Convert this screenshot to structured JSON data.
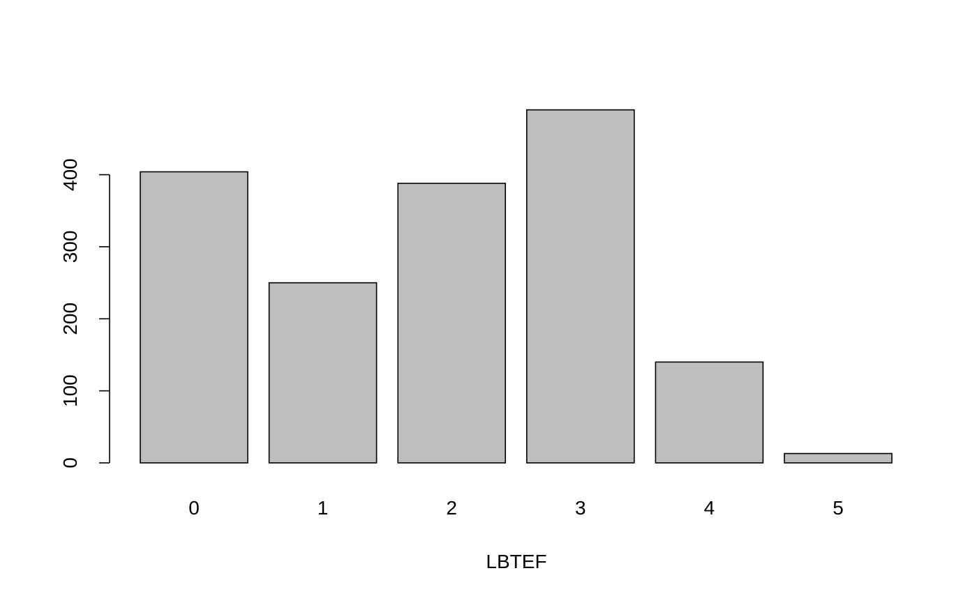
{
  "chart_data": {
    "type": "bar",
    "title": "",
    "xlabel": "LBTEF",
    "ylabel": "",
    "categories": [
      "0",
      "1",
      "2",
      "3",
      "4",
      "5"
    ],
    "values": [
      404,
      250,
      388,
      490,
      140,
      13
    ],
    "ylim": [
      0,
      490
    ],
    "yticks": [
      0,
      100,
      200,
      300,
      400
    ],
    "ytick_labels": [
      "0",
      "100",
      "200",
      "300",
      "400"
    ],
    "grid": false,
    "legend": "none",
    "colors": {
      "bar_fill": "#bebebe",
      "bar_stroke": "#000000",
      "background": "#ffffff"
    }
  }
}
